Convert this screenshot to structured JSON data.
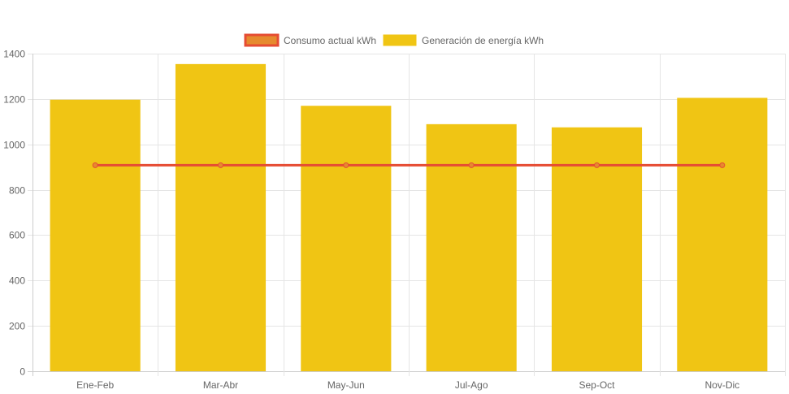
{
  "chart_data": {
    "type": "bar",
    "categories": [
      "Ene-Feb",
      "Mar-Abr",
      "May-Jun",
      "Jul-Ago",
      "Sep-Oct",
      "Nov-Dic"
    ],
    "series": [
      {
        "name": "Generación de energía kWh",
        "type": "bar",
        "values": [
          1197,
          1354,
          1170,
          1089,
          1075,
          1205
        ],
        "color": "#f0c514"
      },
      {
        "name": "Consumo actual kWh",
        "type": "line",
        "values": [
          908,
          908,
          908,
          908,
          908,
          908
        ],
        "color": "#e64c33",
        "fill_color": "#e68a2e"
      }
    ],
    "ylim": [
      0,
      1400
    ],
    "yticks": [
      0,
      200,
      400,
      600,
      800,
      1000,
      1200,
      1400
    ],
    "grid": true,
    "legend_position": "top-center",
    "title": "",
    "xlabel": "",
    "ylabel": ""
  },
  "legend": {
    "items": [
      {
        "label": "Consumo actual kWh",
        "color": "#e68a2e",
        "border": "#e64c33"
      },
      {
        "label": "Generación de energía kWh",
        "color": "#f0c514",
        "border": "#f0c514"
      }
    ]
  }
}
